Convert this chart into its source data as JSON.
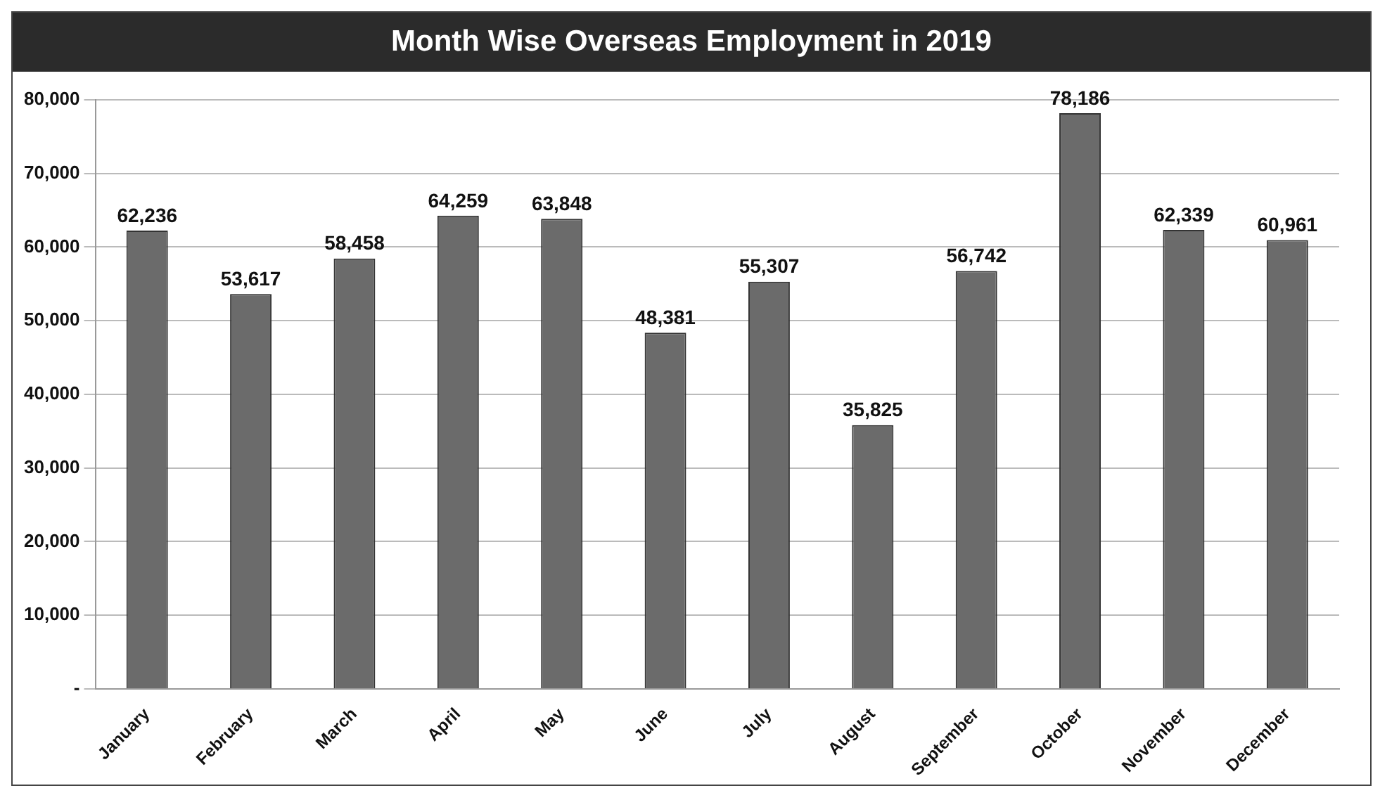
{
  "chart_data": {
    "type": "bar",
    "title": "Month Wise Overseas Employment in 2019",
    "categories": [
      "January",
      "February",
      "March",
      "April",
      "May",
      "June",
      "July",
      "August",
      "September",
      "October",
      "November",
      "December"
    ],
    "values": [
      62236,
      53617,
      58458,
      64259,
      63848,
      48381,
      55307,
      35825,
      56742,
      78186,
      62339,
      60961
    ],
    "value_labels": [
      "62,236",
      "53,617",
      "58,458",
      "64,259",
      "63,848",
      "48,381",
      "55,307",
      "35,825",
      "56,742",
      "78,186",
      "62,339",
      "60,961"
    ],
    "color": "#6b6b6b",
    "ylim": [
      0,
      80000
    ],
    "yticks": [
      {
        "value": 0,
        "label": "-"
      },
      {
        "value": 10000,
        "label": "10,000"
      },
      {
        "value": 20000,
        "label": "20,000"
      },
      {
        "value": 30000,
        "label": "30,000"
      },
      {
        "value": 40000,
        "label": "40,000"
      },
      {
        "value": 50000,
        "label": "50,000"
      },
      {
        "value": 60000,
        "label": "60,000"
      },
      {
        "value": 70000,
        "label": "70,000"
      },
      {
        "value": 80000,
        "label": "80,000"
      }
    ],
    "grid": "y",
    "legend": false
  }
}
